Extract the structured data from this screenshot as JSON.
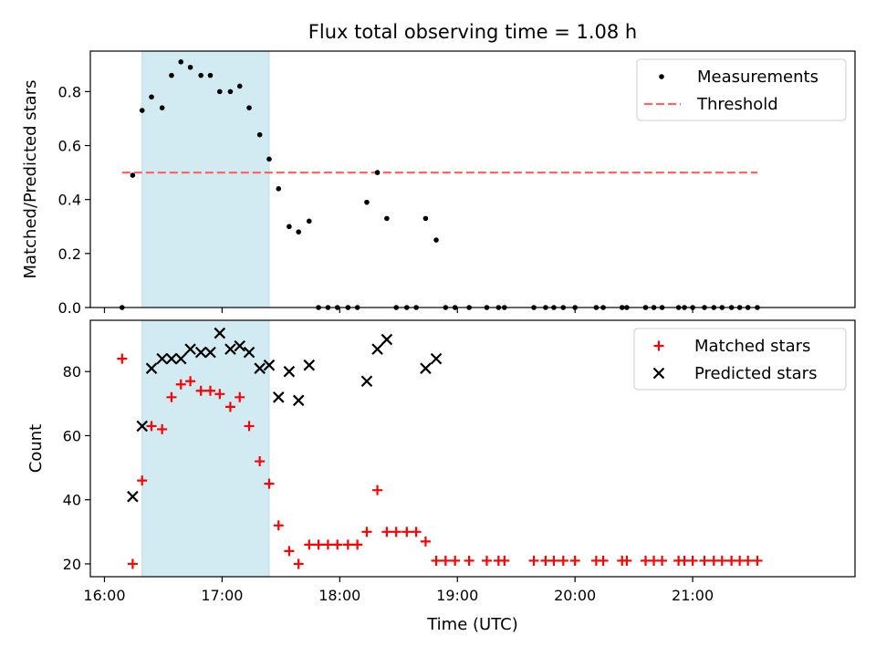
{
  "chart_data": {
    "title": "Flux total observing time = 1.08 h",
    "xlabel": "Time (UTC)",
    "x_unit": "hours",
    "xlim": [
      15.88,
      22.38
    ],
    "x_ticks": [
      16,
      17,
      18,
      19,
      20,
      21
    ],
    "x_tick_labels": [
      "16:00",
      "17:00",
      "18:00",
      "19:00",
      "20:00",
      "21:00"
    ],
    "shaded_span": [
      16.32,
      17.4
    ],
    "panels": [
      {
        "type": "scatter",
        "ylabel": "Matched/Predicted stars",
        "ylim": [
          0,
          0.95
        ],
        "y_ticks": [
          0.0,
          0.2,
          0.4,
          0.6,
          0.8
        ],
        "y_tick_labels": [
          "0.0",
          "0.2",
          "0.4",
          "0.6",
          "0.8"
        ],
        "legend": [
          "Measurements",
          "Threshold"
        ],
        "measurements": [
          [
            16.15,
            0.0
          ],
          [
            16.24,
            0.49
          ],
          [
            16.32,
            0.73
          ],
          [
            16.4,
            0.78
          ],
          [
            16.49,
            0.74
          ],
          [
            16.57,
            0.86
          ],
          [
            16.65,
            0.91
          ],
          [
            16.73,
            0.89
          ],
          [
            16.82,
            0.86
          ],
          [
            16.9,
            0.86
          ],
          [
            16.98,
            0.8
          ],
          [
            17.07,
            0.8
          ],
          [
            17.15,
            0.82
          ],
          [
            17.23,
            0.74
          ],
          [
            17.32,
            0.64
          ],
          [
            17.4,
            0.55
          ],
          [
            17.48,
            0.44
          ],
          [
            17.57,
            0.3
          ],
          [
            17.65,
            0.28
          ],
          [
            17.74,
            0.32
          ],
          [
            17.82,
            0.0
          ],
          [
            17.9,
            0.0
          ],
          [
            17.98,
            0.0
          ],
          [
            18.07,
            0.0
          ],
          [
            18.15,
            0.0
          ],
          [
            18.23,
            0.39
          ],
          [
            18.32,
            0.5
          ],
          [
            18.4,
            0.33
          ],
          [
            18.48,
            0.0
          ],
          [
            18.57,
            0.0
          ],
          [
            18.65,
            0.0
          ],
          [
            18.73,
            0.33
          ],
          [
            18.82,
            0.25
          ],
          [
            18.9,
            0.0
          ],
          [
            18.98,
            0.0
          ],
          [
            19.1,
            0.0
          ],
          [
            19.25,
            0.0
          ],
          [
            19.35,
            0.0
          ],
          [
            19.4,
            0.0
          ],
          [
            19.65,
            0.0
          ],
          [
            19.75,
            0.0
          ],
          [
            19.82,
            0.0
          ],
          [
            19.9,
            0.0
          ],
          [
            20.0,
            0.0
          ],
          [
            20.18,
            0.0
          ],
          [
            20.24,
            0.0
          ],
          [
            20.4,
            0.0
          ],
          [
            20.44,
            0.0
          ],
          [
            20.6,
            0.0
          ],
          [
            20.67,
            0.0
          ],
          [
            20.74,
            0.0
          ],
          [
            20.88,
            0.0
          ],
          [
            20.93,
            0.0
          ],
          [
            21.0,
            0.0
          ],
          [
            21.1,
            0.0
          ],
          [
            21.18,
            0.0
          ],
          [
            21.25,
            0.0
          ],
          [
            21.33,
            0.0
          ],
          [
            21.4,
            0.0
          ],
          [
            21.47,
            0.0
          ],
          [
            21.55,
            0.0
          ]
        ],
        "threshold": {
          "value": 0.5,
          "x_start": 16.15,
          "x_end": 21.55
        }
      },
      {
        "type": "scatter",
        "ylabel": "Count",
        "ylim": [
          16,
          96
        ],
        "y_ticks": [
          20,
          40,
          60,
          80
        ],
        "y_tick_labels": [
          "20",
          "40",
          "60",
          "80"
        ],
        "legend": [
          "Matched stars",
          "Predicted stars"
        ],
        "matched": [
          [
            16.15,
            84
          ],
          [
            16.24,
            20
          ],
          [
            16.32,
            46
          ],
          [
            16.4,
            63
          ],
          [
            16.49,
            62
          ],
          [
            16.57,
            72
          ],
          [
            16.65,
            76
          ],
          [
            16.73,
            77
          ],
          [
            16.82,
            74
          ],
          [
            16.9,
            74
          ],
          [
            16.98,
            73
          ],
          [
            17.07,
            69
          ],
          [
            17.15,
            72
          ],
          [
            17.23,
            63
          ],
          [
            17.32,
            52
          ],
          [
            17.4,
            45
          ],
          [
            17.48,
            32
          ],
          [
            17.57,
            24
          ],
          [
            17.65,
            20
          ],
          [
            17.74,
            26
          ],
          [
            17.82,
            26
          ],
          [
            17.9,
            26
          ],
          [
            17.98,
            26
          ],
          [
            18.07,
            26
          ],
          [
            18.15,
            26
          ],
          [
            18.23,
            30
          ],
          [
            18.32,
            43
          ],
          [
            18.4,
            30
          ],
          [
            18.48,
            30
          ],
          [
            18.57,
            30
          ],
          [
            18.65,
            30
          ],
          [
            18.73,
            27
          ],
          [
            18.82,
            21
          ],
          [
            18.9,
            21
          ],
          [
            18.98,
            21
          ],
          [
            19.1,
            21
          ],
          [
            19.25,
            21
          ],
          [
            19.35,
            21
          ],
          [
            19.4,
            21
          ],
          [
            19.65,
            21
          ],
          [
            19.75,
            21
          ],
          [
            19.82,
            21
          ],
          [
            19.9,
            21
          ],
          [
            20.0,
            21
          ],
          [
            20.18,
            21
          ],
          [
            20.24,
            21
          ],
          [
            20.4,
            21
          ],
          [
            20.44,
            21
          ],
          [
            20.6,
            21
          ],
          [
            20.67,
            21
          ],
          [
            20.74,
            21
          ],
          [
            20.88,
            21
          ],
          [
            20.93,
            21
          ],
          [
            21.0,
            21
          ],
          [
            21.1,
            21
          ],
          [
            21.18,
            21
          ],
          [
            21.25,
            21
          ],
          [
            21.33,
            21
          ],
          [
            21.4,
            21
          ],
          [
            21.47,
            21
          ],
          [
            21.55,
            21
          ]
        ],
        "predicted": [
          [
            16.24,
            41
          ],
          [
            16.32,
            63
          ],
          [
            16.4,
            81
          ],
          [
            16.49,
            84
          ],
          [
            16.57,
            84
          ],
          [
            16.65,
            84
          ],
          [
            16.73,
            87
          ],
          [
            16.82,
            86
          ],
          [
            16.9,
            86
          ],
          [
            16.98,
            92
          ],
          [
            17.07,
            87
          ],
          [
            17.15,
            88
          ],
          [
            17.23,
            86
          ],
          [
            17.32,
            81
          ],
          [
            17.4,
            82
          ],
          [
            17.48,
            72
          ],
          [
            17.57,
            80
          ],
          [
            17.65,
            71
          ],
          [
            17.74,
            82
          ],
          [
            18.23,
            77
          ],
          [
            18.32,
            87
          ],
          [
            18.4,
            90
          ],
          [
            18.73,
            81
          ],
          [
            18.82,
            84
          ]
        ]
      }
    ]
  },
  "colors": {
    "shade": "#add8e6",
    "measurement": "#000000",
    "threshold": "#ff6666",
    "matched": "#ff0000",
    "predicted": "#000000"
  }
}
